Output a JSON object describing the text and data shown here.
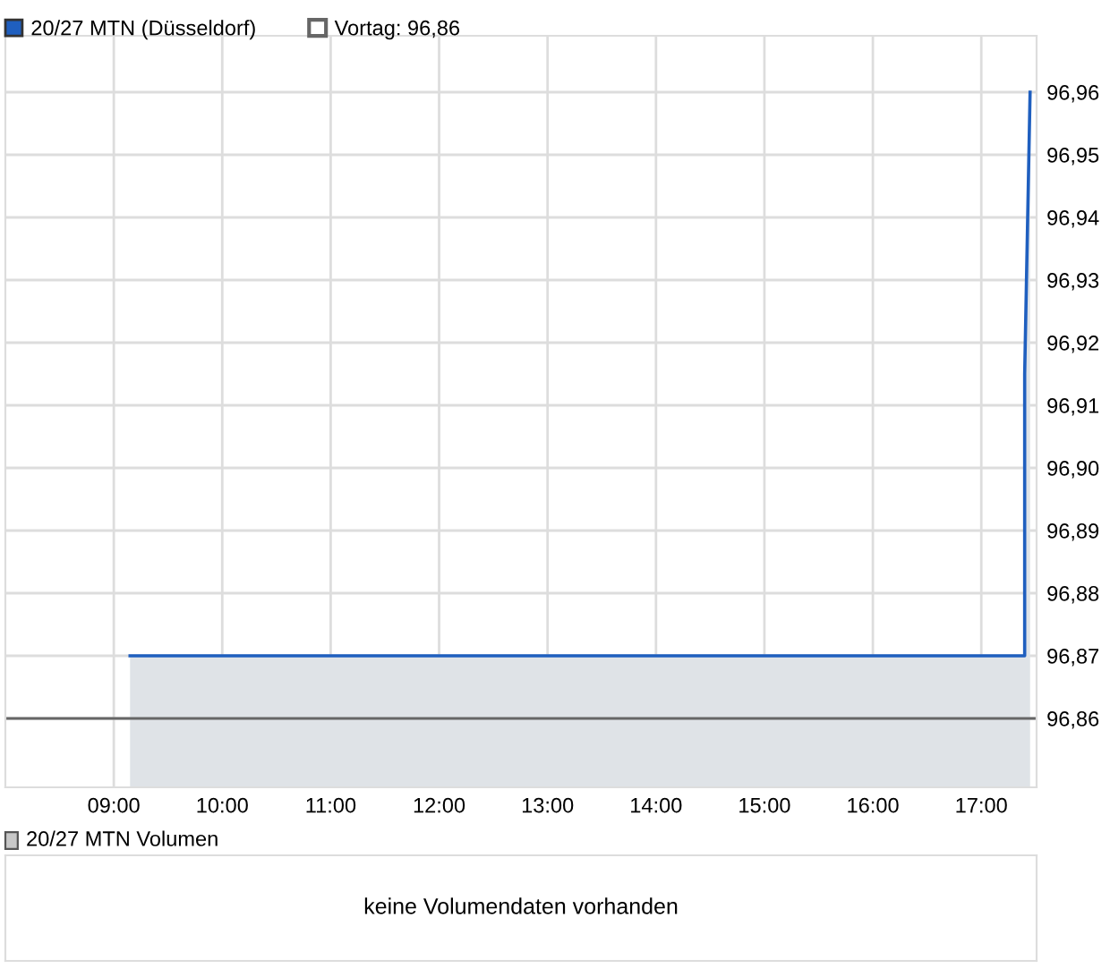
{
  "chart_data": [
    {
      "type": "area",
      "legend": "top left",
      "grid": true,
      "line_style": "solid",
      "series": [
        {
          "name": "20/27 MTN (Düsseldorf)",
          "color": "#1f5fbf",
          "x": [
            9.15,
            17.4,
            17.4,
            17.45
          ],
          "values": [
            96.87,
            96.87,
            96.915,
            96.96
          ]
        }
      ],
      "ref_lines": [
        {
          "axis": "y",
          "value": 96.86,
          "label": "Vortag: 96,86",
          "color": "#666666"
        }
      ],
      "xlim": [
        8.0,
        17.51
      ],
      "ylim": [
        96.849,
        96.969
      ],
      "xticks": [
        {
          "value": 9,
          "label": "09:00"
        },
        {
          "value": 10,
          "label": "10:00"
        },
        {
          "value": 11,
          "label": "11:00"
        },
        {
          "value": 12,
          "label": "12:00"
        },
        {
          "value": 13,
          "label": "13:00"
        },
        {
          "value": 14,
          "label": "14:00"
        },
        {
          "value": 15,
          "label": "15:00"
        },
        {
          "value": 16,
          "label": "16:00"
        },
        {
          "value": 17,
          "label": "17:00"
        }
      ],
      "yticks": [
        {
          "value": 96.86,
          "label": "96,86"
        },
        {
          "value": 96.87,
          "label": "96,87"
        },
        {
          "value": 96.88,
          "label": "96,88"
        },
        {
          "value": 96.89,
          "label": "96,89"
        },
        {
          "value": 96.9,
          "label": "96,90"
        },
        {
          "value": 96.91,
          "label": "96,91"
        },
        {
          "value": 96.92,
          "label": "96,92"
        },
        {
          "value": 96.93,
          "label": "96,93"
        },
        {
          "value": 96.94,
          "label": "96,94"
        },
        {
          "value": 96.95,
          "label": "96,95"
        },
        {
          "value": 96.96,
          "label": "96,96"
        }
      ]
    },
    {
      "type": "other",
      "title": "20/27 MTN Volumen",
      "annotations": [
        "keine Volumendaten vorhanden"
      ]
    }
  ]
}
